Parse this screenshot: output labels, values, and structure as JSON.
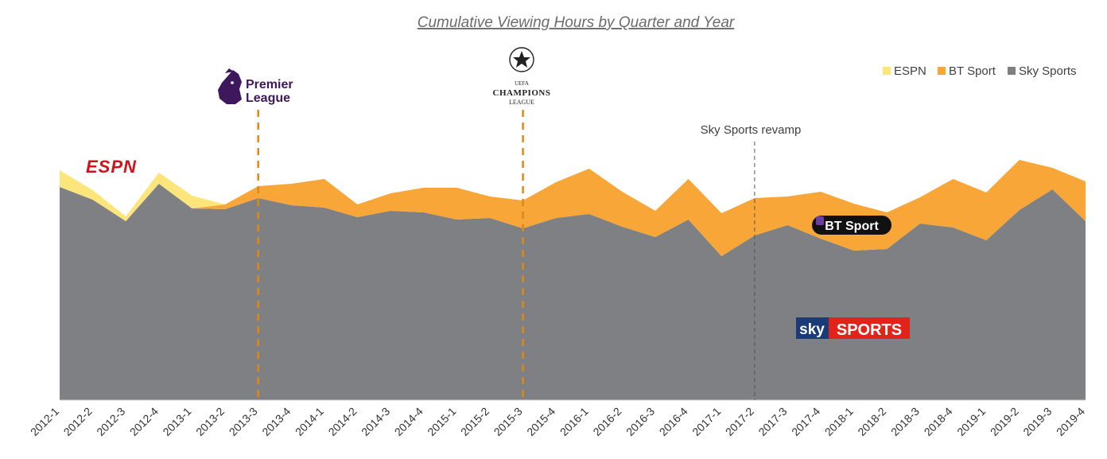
{
  "chart_data": {
    "type": "area",
    "stacked": true,
    "title": "Cumulative Viewing Hours by Quarter and Year",
    "categories": [
      "2012-1",
      "2012-2",
      "2012-3",
      "2012-4",
      "2013-1",
      "2013-2",
      "2013-3",
      "2013-4",
      "2014-1",
      "2014-2",
      "2014-3",
      "2014-4",
      "2015-1",
      "2015-2",
      "2015-3",
      "2015-4",
      "2016-1",
      "2016-2",
      "2016-3",
      "2016-4",
      "2017-1",
      "2017-2",
      "2017-3",
      "2017-4",
      "2018-1",
      "2018-2",
      "2018-3",
      "2018-4",
      "2019-1",
      "2019-2",
      "2019-3",
      "2019-4"
    ],
    "series": [
      {
        "name": "Sky Sports",
        "color": "#7f8083",
        "values": [
          268,
          252,
          225,
          272,
          241,
          240,
          254,
          245,
          242,
          230,
          238,
          236,
          227,
          229,
          216,
          229,
          234,
          218,
          205,
          227,
          181,
          207,
          220,
          203,
          188,
          190,
          222,
          217,
          201,
          239,
          265,
          225
        ]
      },
      {
        "name": "BT Sport",
        "color": "#f8a637",
        "values": [
          0,
          0,
          0,
          0,
          0,
          6,
          15,
          27,
          36,
          16,
          22,
          31,
          40,
          27,
          35,
          45,
          57,
          44,
          33,
          51,
          54,
          47,
          36,
          59,
          59,
          46,
          33,
          61,
          60,
          63,
          27,
          50
        ]
      },
      {
        "name": "ESPN",
        "color": "#fce57b",
        "values": [
          21,
          12,
          6,
          14,
          16,
          0,
          0,
          0,
          0,
          0,
          0,
          0,
          0,
          0,
          0,
          0,
          0,
          0,
          0,
          0,
          0,
          0,
          0,
          0,
          0,
          0,
          0,
          0,
          0,
          0,
          0,
          0
        ]
      }
    ],
    "legend": {
      "placement": "top-right",
      "order": [
        "ESPN",
        "BT Sport",
        "Sky Sports"
      ]
    },
    "ylim": [
      0,
      480
    ],
    "xlabel": "",
    "ylabel": "",
    "grid": false,
    "annotations": [
      {
        "label": "Premier League",
        "at": "2013-3",
        "style": "dashed",
        "color": "#d98a1a"
      },
      {
        "label": "UEFA Champions League",
        "at": "2015-3",
        "style": "dashed",
        "color": "#d98a1a"
      },
      {
        "label": "Sky Sports revamp",
        "at": "2017-2",
        "style": "dashed",
        "color": "#555555"
      }
    ]
  },
  "logos": {
    "espn": "ESPN",
    "premier_league": [
      "Premier",
      "League"
    ],
    "champions_league": [
      "UEFA",
      "CHAMPIONS",
      "LEAGUE"
    ],
    "bt_sport": "BT Sport",
    "sky_sports": [
      "sky",
      "SPORTS"
    ]
  },
  "colors": {
    "pl_purple": "#3d185c",
    "sky_red": "#e2231a",
    "sky_blue": "#1a3a7a",
    "bt_black": "#111111"
  }
}
